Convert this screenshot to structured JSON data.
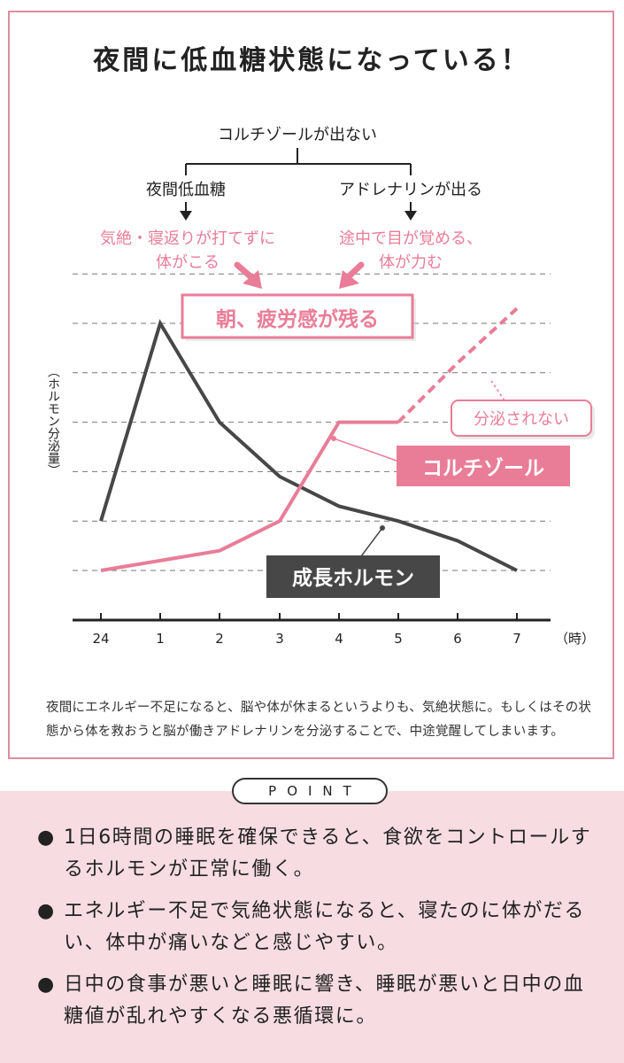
{
  "title": "夜間に低血糖状態になっている！",
  "flow": {
    "top": "コルチゾールが出ない",
    "left_node": "夜間低血糖",
    "right_node": "アドレナリンが出る",
    "left_effect": [
      "気絶・寝返りが打てずに",
      "体がこる"
    ],
    "right_effect": [
      "途中で目が覚める、",
      "体が力む"
    ],
    "result": "朝、疲労感が残る"
  },
  "chart_data": {
    "type": "line",
    "ylabel": "（ホルモン分泌量）",
    "xlabel": "",
    "x_categories": [
      "24",
      "1",
      "2",
      "3",
      "4",
      "5",
      "6",
      "7"
    ],
    "x_unit": "（時）",
    "grid": true,
    "series": [
      {
        "name": "成長ホルモン",
        "color": "#474747",
        "values": [
          2,
          6,
          4,
          2.9,
          2.3,
          2.0,
          1.6,
          1.0
        ]
      },
      {
        "name": "コルチゾール",
        "color": "#e97d97",
        "values": [
          1.0,
          1.2,
          1.4,
          2.0,
          4.0,
          4.0,
          null,
          null
        ],
        "projected_values": [
          null,
          null,
          null,
          null,
          null,
          4.0,
          5.2,
          6.3
        ]
      }
    ],
    "annotations": {
      "not_secreted": "分泌されない"
    }
  },
  "caption": "夜間にエネルギー不足になると、脳や体が休まるというよりも、気絶状態に。もしくはその状態から体を救おうと脳が働きアドレナリンを分泌することで、中途覚醒してしまいます。",
  "point": {
    "label": "POINT",
    "bullet": "●",
    "items": [
      "1日6時間の睡眠を確保できると、食欲をコントロールするホルモンが正常に働く。",
      "エネルギー不足で気絶状態になると、寝たのに体がだるい、体中が痛いなどと感じやすい。",
      "日中の食事が悪いと睡眠に響き、睡眠が悪いと日中の血糖値が乱れやすくなる悪循環に。"
    ]
  },
  "colors": {
    "pink": "#e97d97",
    "pink_light": "#f7dde2",
    "frame": "#dd8ea0",
    "dark": "#474747"
  }
}
